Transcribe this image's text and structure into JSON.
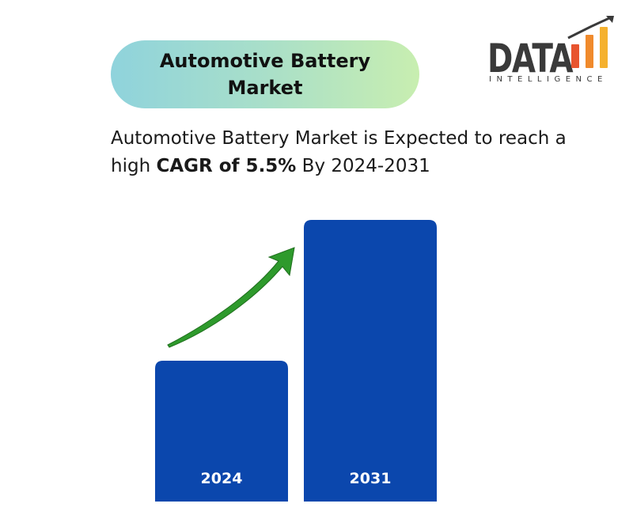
{
  "title": "Automotive Battery Market",
  "logo": {
    "word": "DATA",
    "sub": "INTELLIGENCE",
    "bar_colors": [
      "#e8542f",
      "#f08a2c",
      "#f5b12e"
    ]
  },
  "subtitle": {
    "before": "Automotive Battery Market is Expected to reach a high ",
    "bold": "CAGR of 5.5%",
    "after": " By 2024-2031"
  },
  "chart_data": {
    "type": "bar",
    "categories": [
      "2024",
      "2031"
    ],
    "values": [
      1.0,
      2.0
    ],
    "ylim": [
      0,
      2.0
    ],
    "bar_color": "#0b47ad",
    "label_color": "#ffffff",
    "arrow_color": "#2e9a2c",
    "grid": false,
    "legend": "none"
  }
}
